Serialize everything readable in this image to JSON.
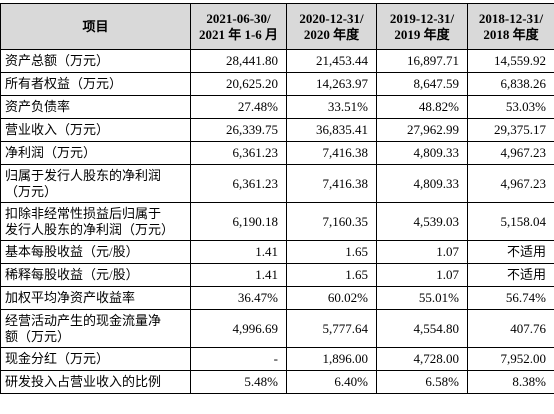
{
  "table": {
    "header": [
      [
        "项目"
      ],
      [
        "2021-06-30/",
        "2021 年 1-6 月"
      ],
      [
        "2020-12-31/",
        "2020 年度"
      ],
      [
        "2019-12-31/",
        "2019 年度"
      ],
      [
        "2018-12-31/",
        "2018 年度"
      ]
    ],
    "rows": [
      {
        "label": [
          "资产总额（万元）"
        ],
        "values": [
          "28,441.80",
          "21,453.44",
          "16,897.71",
          "14,559.92"
        ]
      },
      {
        "label": [
          "所有者权益（万元）"
        ],
        "values": [
          "20,625.20",
          "14,263.97",
          "8,647.59",
          "6,838.26"
        ]
      },
      {
        "label": [
          "资产负债率"
        ],
        "values": [
          "27.48%",
          "33.51%",
          "48.82%",
          "53.03%"
        ]
      },
      {
        "label": [
          "营业收入（万元）"
        ],
        "values": [
          "26,339.75",
          "36,835.41",
          "27,962.99",
          "29,375.17"
        ]
      },
      {
        "label": [
          "净利润（万元）"
        ],
        "values": [
          "6,361.23",
          "7,416.38",
          "4,809.33",
          "4,967.23"
        ]
      },
      {
        "label": [
          "归属于发行人股东的净利润",
          "（万元）"
        ],
        "values": [
          "6,361.23",
          "7,416.38",
          "4,809.33",
          "4,967.23"
        ]
      },
      {
        "label": [
          "扣除非经常性损益后归属于",
          "发行人股东的净利润（万元）"
        ],
        "values": [
          "6,190.18",
          "7,160.35",
          "4,539.03",
          "5,158.04"
        ]
      },
      {
        "label": [
          "基本每股收益（元/股）"
        ],
        "values": [
          "1.41",
          "1.65",
          "1.07",
          "不适用"
        ]
      },
      {
        "label": [
          "稀释每股收益（元/股）"
        ],
        "values": [
          "1.41",
          "1.65",
          "1.07",
          "不适用"
        ]
      },
      {
        "label": [
          "加权平均净资产收益率"
        ],
        "values": [
          "36.47%",
          "60.02%",
          "55.01%",
          "56.74%"
        ]
      },
      {
        "label": [
          "经营活动产生的现金流量净",
          "额（万元）"
        ],
        "values": [
          "4,996.69",
          "5,777.64",
          "4,554.80",
          "407.76"
        ]
      },
      {
        "label": [
          "现金分红（万元）"
        ],
        "values": [
          "-",
          "1,896.00",
          "4,728.00",
          "7,952.00"
        ]
      },
      {
        "label": [
          "研发投入占营业收入的比例"
        ],
        "values": [
          "5.48%",
          "6.40%",
          "6.58%",
          "8.38%"
        ]
      }
    ]
  }
}
